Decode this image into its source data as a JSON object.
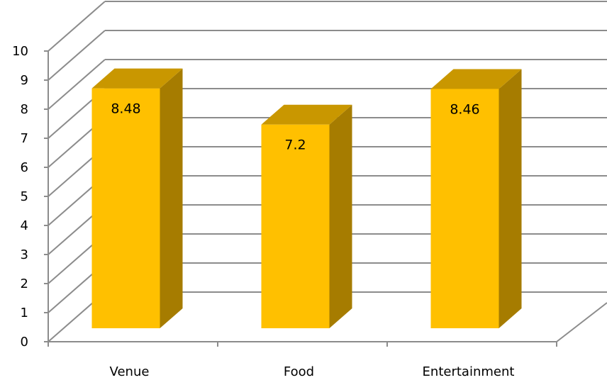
{
  "chart_data": {
    "type": "bar",
    "categories": [
      "Venue",
      "Food",
      "Entertainment"
    ],
    "values": [
      8.48,
      7.2,
      8.46
    ],
    "data_labels": [
      "8.48",
      "7.2",
      "8.46"
    ],
    "ylim": [
      0,
      10
    ],
    "yticks": [
      "0",
      "1",
      "2",
      "3",
      "4",
      "5",
      "6",
      "7",
      "8",
      "9",
      "10"
    ],
    "grid": true,
    "style": "3d-column",
    "colors": {
      "front": "#FFC000",
      "side": "#A67C00",
      "top": "#C99700",
      "grid": "#8c8c8c",
      "axis": "#8c8c8c"
    }
  }
}
